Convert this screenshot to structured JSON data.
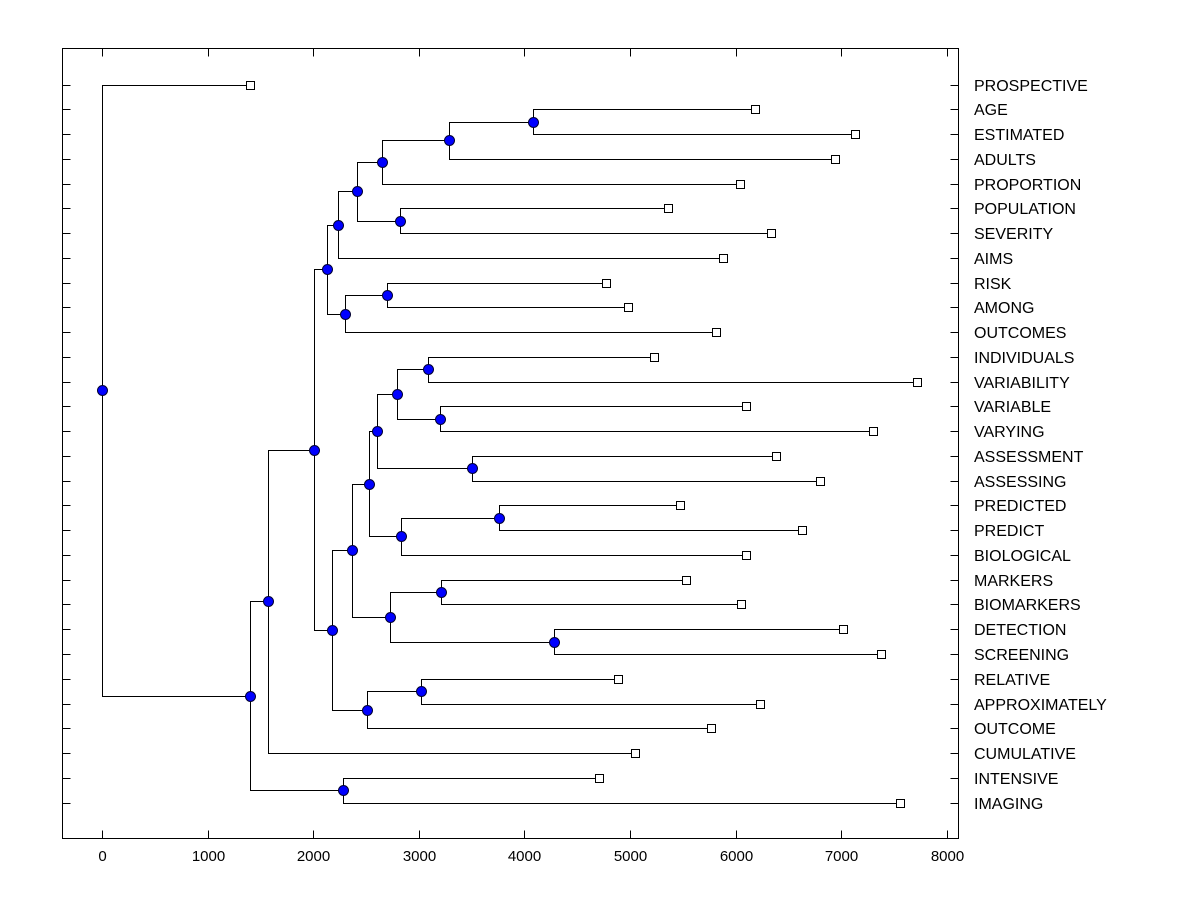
{
  "chart_data": {
    "type": "dendrogram",
    "title": "",
    "xlabel": "",
    "ylabel": "",
    "xlim": [
      -380,
      8150
    ],
    "xticks": [
      0,
      1000,
      2000,
      3000,
      4000,
      5000,
      6000,
      7000,
      8000
    ],
    "xtick_labels": [
      "0",
      "1000",
      "2000",
      "3000",
      "4000",
      "5000",
      "6000",
      "7000",
      "8000"
    ],
    "grid": false,
    "leaves": [
      {
        "id": "PROSPECTIVE",
        "label": "PROSPECTIVE",
        "value": 1402
      },
      {
        "id": "AGE",
        "label": "AGE",
        "value": 6184
      },
      {
        "id": "ESTIMATED",
        "label": "ESTIMATED",
        "value": 7131
      },
      {
        "id": "ADULTS",
        "label": "ADULTS",
        "value": 6941
      },
      {
        "id": "PROPORTION",
        "label": "PROPORTION",
        "value": 6042
      },
      {
        "id": "POPULATION",
        "label": "POPULATION",
        "value": 5360
      },
      {
        "id": "SEVERITY",
        "label": "SEVERITY",
        "value": 6335
      },
      {
        "id": "AIMS",
        "label": "AIMS",
        "value": 5881
      },
      {
        "id": "RISK",
        "label": "RISK",
        "value": 4773
      },
      {
        "id": "AMONG",
        "label": "AMONG",
        "value": 4981
      },
      {
        "id": "OUTCOMES",
        "label": "OUTCOMES",
        "value": 5814
      },
      {
        "id": "INDIVIDUALS",
        "label": "INDIVIDUALS",
        "value": 5227
      },
      {
        "id": "VARIABILITY",
        "label": "VARIABILITY",
        "value": 7718
      },
      {
        "id": "VARIABLE",
        "label": "VARIABLE",
        "value": 6098
      },
      {
        "id": "VARYING",
        "label": "VARYING",
        "value": 7301
      },
      {
        "id": "ASSESSMENT",
        "label": "ASSESSMENT",
        "value": 6383
      },
      {
        "id": "ASSESSING",
        "label": "ASSESSING",
        "value": 6799
      },
      {
        "id": "PREDICTED",
        "label": "PREDICTED",
        "value": 5473
      },
      {
        "id": "PREDICT",
        "label": "PREDICT",
        "value": 6629
      },
      {
        "id": "BIOLOGICAL",
        "label": "BIOLOGICAL",
        "value": 6098
      },
      {
        "id": "MARKERS",
        "label": "MARKERS",
        "value": 5530
      },
      {
        "id": "BIOMARKERS",
        "label": "BIOMARKERS",
        "value": 6051
      },
      {
        "id": "DETECTION",
        "label": "DETECTION",
        "value": 7017
      },
      {
        "id": "SCREENING",
        "label": "SCREENING",
        "value": 7377
      },
      {
        "id": "RELATIVE",
        "label": "RELATIVE",
        "value": 4886
      },
      {
        "id": "APPROXIMATELY",
        "label": "APPROXIMATELY",
        "value": 6231
      },
      {
        "id": "OUTCOME",
        "label": "OUTCOME",
        "value": 5767
      },
      {
        "id": "CUMULATIVE",
        "label": "CUMULATIVE",
        "value": 5047
      },
      {
        "id": "INTENSIVE",
        "label": "INTENSIVE",
        "value": 4706
      },
      {
        "id": "IMAGING",
        "label": "IMAGING",
        "value": 7557
      }
    ],
    "nodes": [
      {
        "id": "n_age_est",
        "value": 4081,
        "children": [
          "AGE",
          "ESTIMATED"
        ]
      },
      {
        "id": "n_adults",
        "value": 3282,
        "children": [
          "n_age_est",
          "ADULTS"
        ]
      },
      {
        "id": "n_prop",
        "value": 2650,
        "children": [
          "n_adults",
          "PROPORTION"
        ]
      },
      {
        "id": "n_pop_sev",
        "value": 2822,
        "children": [
          "POPULATION",
          "SEVERITY"
        ]
      },
      {
        "id": "n_2415",
        "value": 2415,
        "children": [
          "n_prop",
          "n_pop_sev"
        ]
      },
      {
        "id": "n_aims",
        "value": 2235,
        "children": [
          "n_2415",
          "AIMS"
        ]
      },
      {
        "id": "n_risk_among",
        "value": 2700,
        "children": [
          "RISK",
          "AMONG"
        ]
      },
      {
        "id": "n_outcomes",
        "value": 2300,
        "children": [
          "n_risk_among",
          "OUTCOMES"
        ]
      },
      {
        "id": "n_2130",
        "value": 2130,
        "children": [
          "n_aims",
          "n_outcomes"
        ]
      },
      {
        "id": "n_ind_var",
        "value": 3087,
        "children": [
          "INDIVIDUALS",
          "VARIABILITY"
        ]
      },
      {
        "id": "n_var_vary",
        "value": 3200,
        "children": [
          "VARIABLE",
          "VARYING"
        ]
      },
      {
        "id": "n_2794",
        "value": 2794,
        "children": [
          "n_ind_var",
          "n_var_vary"
        ]
      },
      {
        "id": "n_assess",
        "value": 3504,
        "children": [
          "ASSESSMENT",
          "ASSESSING"
        ]
      },
      {
        "id": "n_2604",
        "value": 2604,
        "children": [
          "n_2794",
          "n_assess"
        ]
      },
      {
        "id": "n_predict",
        "value": 3759,
        "children": [
          "PREDICTED",
          "PREDICT"
        ]
      },
      {
        "id": "n_bio",
        "value": 2831,
        "children": [
          "n_predict",
          "BIOLOGICAL"
        ]
      },
      {
        "id": "n_2528",
        "value": 2528,
        "children": [
          "n_2604",
          "n_bio"
        ]
      },
      {
        "id": "n_markers",
        "value": 3210,
        "children": [
          "MARKERS",
          "BIOMARKERS"
        ]
      },
      {
        "id": "n_detect",
        "value": 4280,
        "children": [
          "DETECTION",
          "SCREENING"
        ]
      },
      {
        "id": "n_2727",
        "value": 2727,
        "children": [
          "n_markers",
          "n_detect"
        ]
      },
      {
        "id": "n_2367",
        "value": 2367,
        "children": [
          "n_2528",
          "n_2727"
        ]
      },
      {
        "id": "n_rel_approx",
        "value": 3021,
        "children": [
          "RELATIVE",
          "APPROXIMATELY"
        ]
      },
      {
        "id": "n_outcome",
        "value": 2509,
        "children": [
          "n_rel_approx",
          "OUTCOME"
        ]
      },
      {
        "id": "n_2178",
        "value": 2178,
        "children": [
          "n_2367",
          "n_outcome"
        ]
      },
      {
        "id": "n_2008",
        "value": 2008,
        "children": [
          "n_2130",
          "n_2178"
        ]
      },
      {
        "id": "n_cumul",
        "value": 1572,
        "children": [
          "n_2008",
          "CUMULATIVE"
        ]
      },
      {
        "id": "n_int_img",
        "value": 2282,
        "children": [
          "INTENSIVE",
          "IMAGING"
        ]
      },
      {
        "id": "n_1402",
        "value": 1402,
        "children": [
          "n_cumul",
          "n_int_img"
        ]
      },
      {
        "id": "root",
        "value": 0,
        "children": [
          "PROSPECTIVE",
          "n_1402"
        ]
      }
    ],
    "colors": {
      "node_fill": "#0000ff",
      "leaf_fill": "#ffffff",
      "line": "#000000"
    }
  }
}
